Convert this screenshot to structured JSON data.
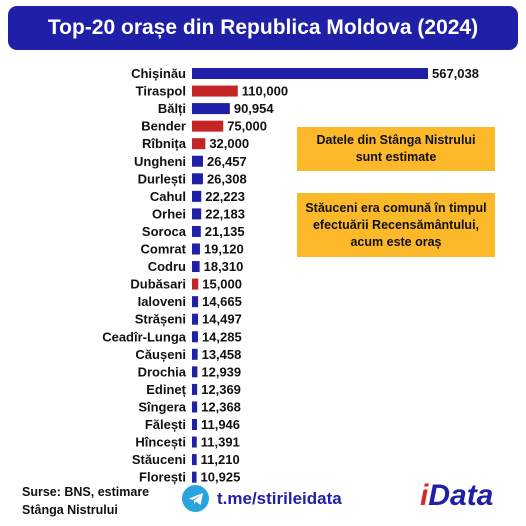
{
  "title": "Top-20 orașe din Republica Moldova (2024)",
  "chart_data": {
    "type": "bar",
    "orientation": "horizontal",
    "categories": [
      "Chișinău",
      "Tiraspol",
      "Bălți",
      "Bender",
      "Rîbnița",
      "Ungheni",
      "Durlești",
      "Cahul",
      "Orhei",
      "Soroca",
      "Comrat",
      "Codru",
      "Dubăsari",
      "Ialoveni",
      "Strășeni",
      "Ceadîr-Lunga",
      "Căușeni",
      "Drochia",
      "Edineț",
      "Sîngera",
      "Fălești",
      "Hîncești",
      "Stăuceni",
      "Florești"
    ],
    "values": [
      567038,
      110000,
      90954,
      75000,
      32000,
      26457,
      26308,
      22223,
      22183,
      21135,
      19120,
      18310,
      15000,
      14665,
      14497,
      14285,
      13458,
      12939,
      12369,
      12368,
      11946,
      11391,
      11210,
      10925
    ],
    "value_labels": [
      "567,038",
      "110,000",
      "90,954",
      "75,000",
      "32,000",
      "26,457",
      "26,308",
      "22,223",
      "22,183",
      "21,135",
      "19,120",
      "18,310",
      "15,000",
      "14,665",
      "14,497",
      "14,285",
      "13,458",
      "12,939",
      "12,369",
      "12,368",
      "11,946",
      "11,391",
      "11,210",
      "10,925"
    ],
    "highlighted": [
      "Tiraspol",
      "Bender",
      "Rîbnița",
      "Dubăsari"
    ],
    "colors": {
      "default": "#1f1fa8",
      "highlight": "#c42424"
    },
    "xlim": [
      0,
      567038
    ]
  },
  "notes": {
    "estimated": "Datele din Stânga Nistrului sunt estimate",
    "stauceni": "Stăuceni era comună în timpul efectuării Recensământului, acum este oraș"
  },
  "footer": {
    "source_line1": "Surse: BNS, estimare",
    "source_line2": "Stânga Nistrului",
    "telegram": "t.me/stirileidata",
    "telegram_icon": "telegram-icon",
    "brand_i": "i",
    "brand_rest": "Data"
  }
}
